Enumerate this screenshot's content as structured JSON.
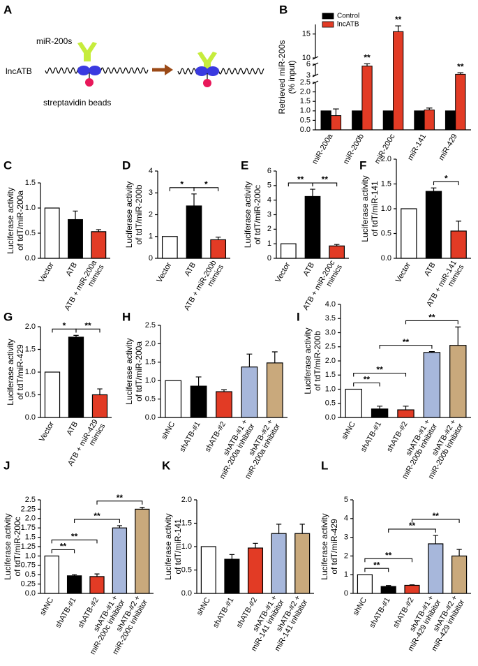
{
  "diagram": {
    "letter": "A",
    "mirna": "miR-200s",
    "lncrna": "lncATB",
    "beads": "streptavidin beads"
  },
  "chart_data": [
    {
      "type": "grouped_bar",
      "letter": "B",
      "ylabel": [
        "Retrieved miR-200s",
        "(% input)"
      ],
      "categories": [
        "miR-200a",
        "miR-200b",
        "miR-200c",
        "miR-141",
        "miR-429"
      ],
      "series": [
        {
          "name": "Control",
          "color": "#000000",
          "values": [
            1,
            1,
            1,
            1,
            1
          ],
          "errors": [
            null,
            null,
            null,
            null,
            null
          ]
        },
        {
          "name": "lncATB",
          "color": "#e23b25",
          "values": [
            0.75,
            5.5,
            15.5,
            1.05,
            3.3
          ],
          "errors": [
            0.35,
            0.8,
            1.2,
            0.1,
            0.4
          ],
          "stars": [
            null,
            "**",
            "**",
            null,
            "**"
          ]
        }
      ],
      "y_segments": [
        [
          0,
          2.5
        ],
        [
          3,
          6
        ],
        [
          10,
          17
        ]
      ],
      "yticks": [
        {
          "value": 0,
          "label": "0.0"
        },
        0.5,
        {
          "value": 1,
          "label": "1.0"
        },
        1.5,
        {
          "value": 2,
          "label": "2.0"
        },
        2.5,
        3,
        6,
        10,
        15
      ],
      "legend": "upper left"
    },
    {
      "type": "bar",
      "letter": "C",
      "ylabel": [
        "Luciferase activity",
        "of tdT/miR-200a"
      ],
      "categories": [
        "Vector",
        "ATB",
        [
          "ATB + miR-200a",
          "mimics"
        ]
      ],
      "values": [
        1,
        0.77,
        0.53
      ],
      "errors": [
        null,
        0.17,
        0.04
      ],
      "colors": [
        "#ffffff",
        "#000000",
        "#e23b25"
      ],
      "ylim": [
        0,
        1.5
      ],
      "yticks": [
        {
          "value": 0,
          "label": "0.0"
        },
        0.5,
        {
          "value": 1,
          "label": "1.0"
        },
        1.5
      ]
    },
    {
      "type": "bar",
      "letter": "D",
      "ylabel": [
        "Luciferase activity",
        "of tdT/miR-200b"
      ],
      "categories": [
        "Vector",
        "ATB",
        [
          "ATB + miR-200b",
          "mimics"
        ]
      ],
      "values": [
        1,
        2.4,
        0.85
      ],
      "errors": [
        null,
        0.55,
        0.12
      ],
      "colors": [
        "#ffffff",
        "#000000",
        "#e23b25"
      ],
      "ylim": [
        0,
        4
      ],
      "yticks": [
        0,
        1,
        2,
        3,
        4
      ],
      "significance": [
        {
          "pair": [
            "Vector",
            "ATB"
          ],
          "label": "*"
        },
        {
          "pair": [
            "ATB",
            "ATB + miR-200b mimics"
          ],
          "label": "*"
        }
      ]
    },
    {
      "type": "bar",
      "letter": "E",
      "ylabel": [
        "Luciferase activity",
        "of tdT/miR-200c"
      ],
      "categories": [
        "Vector",
        "ATB",
        [
          "ATB + miR-200c",
          "mimics"
        ]
      ],
      "values": [
        1,
        4.25,
        0.85
      ],
      "errors": [
        null,
        0.5,
        0.1
      ],
      "colors": [
        "#ffffff",
        "#000000",
        "#e23b25"
      ],
      "ylim": [
        0,
        6
      ],
      "yticks": [
        0,
        1,
        2,
        3,
        4,
        5,
        6
      ],
      "significance": [
        {
          "pair": [
            "Vector",
            "ATB"
          ],
          "label": "**"
        },
        {
          "pair": [
            "ATB",
            "ATB + miR-200c mimics"
          ],
          "label": "**"
        }
      ]
    },
    {
      "type": "bar",
      "letter": "F",
      "ylabel": [
        "Luciferase activity",
        "of tdT/miR-141"
      ],
      "categories": [
        "Vector",
        "ATB",
        [
          "ATB + miR-141",
          "mimics"
        ]
      ],
      "values": [
        1,
        1.35,
        0.55
      ],
      "errors": [
        null,
        0.07,
        0.2
      ],
      "colors": [
        "#ffffff",
        "#000000",
        "#e23b25"
      ],
      "ylim": [
        0,
        2
      ],
      "yticks": [
        {
          "value": 0,
          "label": "0.0"
        },
        0.5,
        {
          "value": 1,
          "label": "1.0"
        },
        1.5,
        {
          "value": 2,
          "label": "2.0"
        }
      ],
      "significance": [
        {
          "pair": [
            "ATB",
            "ATB + miR-141 mimics"
          ],
          "label": "*"
        }
      ]
    },
    {
      "type": "bar",
      "letter": "G",
      "ylabel": [
        "Luciferase activity",
        "of tdT/miR-429"
      ],
      "categories": [
        "Vector",
        "ATB",
        [
          "ATB + miR-429",
          "mimics"
        ]
      ],
      "values": [
        1,
        1.77,
        0.5
      ],
      "errors": [
        null,
        0.04,
        0.13
      ],
      "colors": [
        "#ffffff",
        "#000000",
        "#e23b25"
      ],
      "ylim": [
        0,
        2
      ],
      "yticks": [
        {
          "value": 0,
          "label": "0.0"
        },
        0.5,
        {
          "value": 1,
          "label": "1.0"
        },
        1.5,
        {
          "value": 2,
          "label": "2.0"
        }
      ],
      "significance": [
        {
          "pair": [
            "Vector",
            "ATB"
          ],
          "label": "*"
        },
        {
          "pair": [
            "ATB",
            "ATB + miR-429 mimics"
          ],
          "label": "**"
        }
      ]
    },
    {
      "type": "bar",
      "letter": "H",
      "ylabel": [
        "Luciferase activity",
        "of tdT/miR-200a"
      ],
      "categories": [
        "shNC",
        "shATB-#1",
        "shATB-#2",
        [
          "shATB-#1 +",
          "miR-200a inhibitor"
        ],
        [
          "shATB-#2 +",
          "miR-200a inhibitor"
        ]
      ],
      "values": [
        1,
        0.85,
        0.7,
        1.37,
        1.48
      ],
      "errors": [
        null,
        0.25,
        0.05,
        0.35,
        0.3
      ],
      "colors": [
        "#ffffff",
        "#000000",
        "#e23b25",
        "#a7b7db",
        "#c9a97c"
      ],
      "ylim": [
        0,
        2.5
      ],
      "yticks": [
        {
          "value": 0,
          "label": "0.0"
        },
        0.5,
        {
          "value": 1,
          "label": "1.0"
        },
        1.5,
        {
          "value": 2,
          "label": "2.0"
        },
        2.5
      ]
    },
    {
      "type": "bar",
      "letter": "I",
      "ylabel": [
        "Luciferase activity",
        "of tdT/miR-200b"
      ],
      "categories": [
        "shNC",
        "shATB-#1",
        "shATB-#2",
        [
          "shATB-#1 +",
          "miR-200b inhibitor"
        ],
        [
          "shATB-#2 +",
          "miR-200b inhibitor"
        ]
      ],
      "values": [
        1,
        0.3,
        0.27,
        2.3,
        2.55
      ],
      "errors": [
        null,
        0.1,
        0.13,
        0.03,
        0.65
      ],
      "colors": [
        "#ffffff",
        "#000000",
        "#e23b25",
        "#a7b7db",
        "#c9a97c"
      ],
      "ylim": [
        0,
        4
      ],
      "yticks": [
        {
          "value": 0,
          "label": "0.0"
        },
        0.5,
        {
          "value": 1,
          "label": "1.0"
        },
        1.5,
        {
          "value": 2,
          "label": "2.0"
        },
        2.5,
        {
          "value": 3,
          "label": "3.0"
        },
        3.5,
        {
          "value": 4,
          "label": "4.0"
        }
      ],
      "significance": [
        {
          "pair": [
            "shNC",
            "shATB-#1"
          ],
          "label": "**"
        },
        {
          "pair": [
            "shNC",
            "shATB-#2"
          ],
          "label": "**"
        },
        {
          "pair": [
            "shATB-#1",
            "shATB-#1 + miR-200b inhibitor"
          ],
          "label": "**"
        },
        {
          "pair": [
            "shATB-#2",
            "shATB-#2 + miR-200b inhibitor"
          ],
          "label": "**"
        }
      ]
    },
    {
      "type": "bar",
      "letter": "J",
      "ylabel": [
        "Luciferase activity",
        "of tdT/miR-200c"
      ],
      "categories": [
        "shNC",
        "shATB-#1",
        "shATB-#2",
        [
          "shATB-#1 +",
          "miR-200c inhibitor"
        ],
        [
          "shATB-#2 +",
          "miR-200c inhibitor"
        ]
      ],
      "values": [
        1,
        0.47,
        0.45,
        1.75,
        2.25
      ],
      "errors": [
        null,
        0.03,
        0.07,
        0.06,
        0.05
      ],
      "colors": [
        "#ffffff",
        "#000000",
        "#e23b25",
        "#a7b7db",
        "#c9a97c"
      ],
      "ylim": [
        0,
        2.5
      ],
      "yticks": [
        {
          "value": 0,
          "label": "0.0"
        },
        0.25,
        0.5,
        0.75,
        {
          "value": 1,
          "label": "1.0"
        },
        1.25,
        1.5,
        1.75,
        {
          "value": 2,
          "label": "2.0"
        },
        2.25,
        2.5
      ],
      "significance": [
        {
          "pair": [
            "shNC",
            "shATB-#1"
          ],
          "label": "**"
        },
        {
          "pair": [
            "shNC",
            "shATB-#2"
          ],
          "label": "**"
        },
        {
          "pair": [
            "shATB-#1",
            "shATB-#1 + miR-200c inhibitor"
          ],
          "label": "**"
        },
        {
          "pair": [
            "shATB-#2",
            "shATB-#2 + miR-200c inhibitor"
          ],
          "label": "**"
        }
      ]
    },
    {
      "type": "bar",
      "letter": "K",
      "ylabel": [
        "Luciferase activity",
        "of tdT/miR-141"
      ],
      "categories": [
        "shNC",
        "shATB-#1",
        "shATB-#2",
        [
          "shATB-#1 +",
          "miR-141 inhibitor"
        ],
        [
          "shATB-#2 +",
          "miR-141 inhibitor"
        ]
      ],
      "values": [
        1,
        0.73,
        0.97,
        1.28,
        1.28
      ],
      "errors": [
        null,
        0.1,
        0.1,
        0.2,
        0.2
      ],
      "colors": [
        "#ffffff",
        "#000000",
        "#e23b25",
        "#a7b7db",
        "#c9a97c"
      ],
      "ylim": [
        0,
        2
      ],
      "yticks": [
        {
          "value": 0,
          "label": "0.0"
        },
        0.5,
        {
          "value": 1,
          "label": "1.0"
        },
        1.5,
        {
          "value": 2,
          "label": "2.0"
        }
      ]
    },
    {
      "type": "bar",
      "letter": "L",
      "ylabel": [
        "Luciferase activity",
        "of tdT/miR-429"
      ],
      "categories": [
        "shNC",
        "shATB-#1",
        "shATB-#2",
        [
          "shATB-#1 +",
          "miR-429 inhibitor"
        ],
        [
          "shATB-#2 +",
          "miR-429 inhibitor"
        ]
      ],
      "values": [
        1,
        0.37,
        0.43,
        2.65,
        2
      ],
      "errors": [
        null,
        0.05,
        0.03,
        0.45,
        0.35
      ],
      "colors": [
        "#ffffff",
        "#000000",
        "#e23b25",
        "#a7b7db",
        "#c9a97c"
      ],
      "ylim": [
        0,
        5
      ],
      "yticks": [
        0,
        1,
        2,
        3,
        4,
        5
      ],
      "significance": [
        {
          "pair": [
            "shNC",
            "shATB-#1"
          ],
          "label": "**"
        },
        {
          "pair": [
            "shNC",
            "shATB-#2"
          ],
          "label": "**"
        },
        {
          "pair": [
            "shATB-#1",
            "shATB-#1 + miR-429 inhibitor"
          ],
          "label": "**"
        },
        {
          "pair": [
            "shATB-#2",
            "shATB-#2 + miR-429 inhibitor"
          ],
          "label": "**"
        }
      ]
    }
  ]
}
